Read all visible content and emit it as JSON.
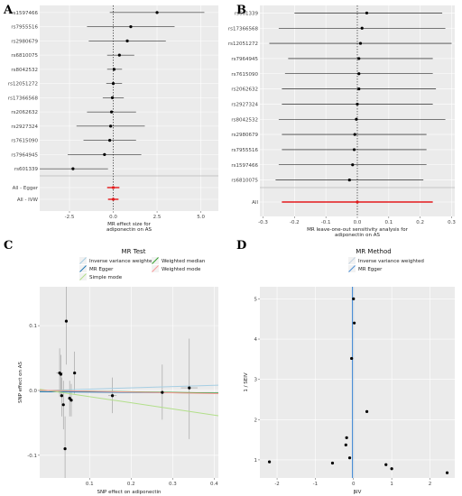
{
  "chart_data": [
    {
      "panel": "A",
      "type": "forest",
      "xlabel": "MR effect size for\nadiponectin on AS",
      "xlim": [
        -4.2,
        6.0
      ],
      "xticks": [
        -2.5,
        0.0,
        2.5,
        5.0
      ],
      "xtick_labels": [
        "-2.5",
        "0.0",
        "2.5",
        "5.0"
      ],
      "snps": [
        {
          "name": "rs1597466",
          "est": 2.5,
          "lo": -0.2,
          "hi": 5.2
        },
        {
          "name": "rs7955516",
          "est": 1.0,
          "lo": -1.5,
          "hi": 3.5
        },
        {
          "name": "rs2980679",
          "est": 0.8,
          "lo": -1.4,
          "hi": 3.0
        },
        {
          "name": "rs6810075",
          "est": 0.35,
          "lo": -0.35,
          "hi": 1.2
        },
        {
          "name": "rs8042532",
          "est": 0.05,
          "lo": -0.35,
          "hi": 0.5
        },
        {
          "name": "rs12051272",
          "est": 0.0,
          "lo": -0.4,
          "hi": 0.5
        },
        {
          "name": "rs17366568",
          "est": -0.05,
          "lo": -0.6,
          "hi": 0.6
        },
        {
          "name": "rs2062632",
          "est": -0.1,
          "lo": -1.5,
          "hi": 1.3
        },
        {
          "name": "rs2927324",
          "est": -0.15,
          "lo": -2.1,
          "hi": 1.8
        },
        {
          "name": "rs7615090",
          "est": -0.2,
          "lo": -1.7,
          "hi": 1.3
        },
        {
          "name": "rs7964945",
          "est": -0.5,
          "lo": -2.6,
          "hi": 1.6
        },
        {
          "name": "rs601339",
          "est": -2.3,
          "lo": -4.3,
          "hi": -0.3
        }
      ],
      "summary": [
        {
          "name": "All - Egger",
          "est": 0.0,
          "lo": -0.35,
          "hi": 0.35
        },
        {
          "name": "All - IVW",
          "est": 0.0,
          "lo": -0.3,
          "hi": 0.3
        }
      ]
    },
    {
      "panel": "B",
      "type": "forest",
      "xlabel": "MR leave-one-out sensitivity analysis for\nadiponectin on AS",
      "xlim": [
        -0.31,
        0.31
      ],
      "xticks": [
        -0.3,
        -0.2,
        -0.1,
        0.0,
        0.1,
        0.2,
        0.3
      ],
      "xtick_labels": [
        "-0.3",
        "-0.2",
        "-0.1",
        "0.0",
        "0.1",
        "0.2",
        "0.3"
      ],
      "snps": [
        {
          "name": "rs601339",
          "est": 0.03,
          "lo": -0.2,
          "hi": 0.27
        },
        {
          "name": "rs17366568",
          "est": 0.015,
          "lo": -0.25,
          "hi": 0.28
        },
        {
          "name": "rs12051272",
          "est": 0.01,
          "lo": -0.28,
          "hi": 0.3
        },
        {
          "name": "rs7964945",
          "est": 0.005,
          "lo": -0.22,
          "hi": 0.24
        },
        {
          "name": "rs7615090",
          "est": 0.005,
          "lo": -0.23,
          "hi": 0.24
        },
        {
          "name": "rs2062632",
          "est": 0.005,
          "lo": -0.24,
          "hi": 0.25
        },
        {
          "name": "rs2927324",
          "est": 0.0,
          "lo": -0.24,
          "hi": 0.24
        },
        {
          "name": "rs8042532",
          "est": -0.003,
          "lo": -0.25,
          "hi": 0.28
        },
        {
          "name": "rs2980679",
          "est": -0.008,
          "lo": -0.24,
          "hi": 0.22
        },
        {
          "name": "rs7955516",
          "est": -0.01,
          "lo": -0.24,
          "hi": 0.22
        },
        {
          "name": "rs1597466",
          "est": -0.015,
          "lo": -0.25,
          "hi": 0.22
        },
        {
          "name": "rs6810075",
          "est": -0.025,
          "lo": -0.26,
          "hi": 0.21
        }
      ],
      "summary": [
        {
          "name": "All",
          "est": 0.0,
          "lo": -0.24,
          "hi": 0.24
        }
      ]
    },
    {
      "panel": "C",
      "type": "scatter",
      "legend_title": "MR Test",
      "legend": [
        {
          "name": "Inverse variance weighted",
          "color": "#a6cee3"
        },
        {
          "name": "MR Egger",
          "color": "#1f78b4"
        },
        {
          "name": "Simple mode",
          "color": "#b2df8a"
        },
        {
          "name": "Weighted median",
          "color": "#33a02c"
        },
        {
          "name": "Weighted mode",
          "color": "#fb9a99"
        }
      ],
      "xlabel": "SNP effect on adiponectin",
      "ylabel": "SNP effect on AS",
      "xlim": [
        -0.02,
        0.41
      ],
      "ylim": [
        -0.135,
        0.16
      ],
      "xticks": [
        0.1,
        0.2,
        0.3,
        0.4
      ],
      "xtick_labels": [
        "0.1",
        "0.2",
        "0.3",
        "0.4"
      ],
      "yticks": [
        -0.1,
        0.0,
        0.1
      ],
      "ytick_labels": [
        "-0.1",
        "0.0",
        "0.1"
      ],
      "points": [
        {
          "x": 0.028,
          "y": 0.027,
          "ylo": -0.01,
          "yhi": 0.065
        },
        {
          "x": 0.031,
          "y": 0.025,
          "ylo": -0.005,
          "yhi": 0.055
        },
        {
          "x": 0.033,
          "y": -0.008,
          "ylo": -0.04,
          "yhi": 0.02
        },
        {
          "x": 0.037,
          "y": -0.022,
          "ylo": -0.06,
          "yhi": 0.015
        },
        {
          "x": 0.041,
          "y": -0.09,
          "ylo": -0.14,
          "yhi": -0.04
        },
        {
          "x": 0.044,
          "y": 0.107,
          "ylo": 0.04,
          "yhi": 0.16
        },
        {
          "x": 0.052,
          "y": -0.012,
          "ylo": -0.04,
          "yhi": 0.015
        },
        {
          "x": 0.056,
          "y": -0.015,
          "ylo": -0.04,
          "yhi": 0.01
        },
        {
          "x": 0.064,
          "y": 0.027,
          "ylo": -0.005,
          "yhi": 0.06
        },
        {
          "x": 0.155,
          "y": -0.008,
          "ylo": -0.035,
          "yhi": 0.02
        },
        {
          "x": 0.275,
          "y": -0.003,
          "ylo": -0.045,
          "yhi": 0.04
        },
        {
          "x": 0.34,
          "y": 0.004,
          "ylo": -0.075,
          "yhi": 0.08
        }
      ],
      "xerr": [
        {
          "y": 0.027,
          "xlo": 0.02,
          "xhi": 0.036
        },
        {
          "y": -0.003,
          "xlo": 0.255,
          "xhi": 0.295
        },
        {
          "y": 0.004,
          "xlo": 0.32,
          "xhi": 0.36
        },
        {
          "y": -0.008,
          "xlo": 0.145,
          "xhi": 0.165
        }
      ],
      "lines": [
        {
          "name": "Inverse variance weighted",
          "color": "#a6cee3",
          "intercept": 0.0,
          "slope": 0.02
        },
        {
          "name": "MR Egger",
          "color": "#1f78b4",
          "intercept": -0.002,
          "slope": -0.005
        },
        {
          "name": "Simple mode",
          "color": "#b2df8a",
          "intercept": 0.0,
          "slope": -0.095
        },
        {
          "name": "Weighted median",
          "color": "#33a02c",
          "intercept": 0.0,
          "slope": -0.01
        },
        {
          "name": "Weighted mode",
          "color": "#fb9a99",
          "intercept": 0.0,
          "slope": -0.012
        }
      ]
    },
    {
      "panel": "D",
      "type": "funnel",
      "legend_title": "MR Method",
      "legend": [
        {
          "name": "Inverse variance weighted",
          "color": "#c6d4e1"
        },
        {
          "name": "MR Egger",
          "color": "#4a8ed6"
        }
      ],
      "xlabel": "βIV",
      "ylabel": "1 / SEIV",
      "xlim": [
        -2.45,
        2.65
      ],
      "ylim": [
        0.55,
        5.3
      ],
      "xticks": [
        -2,
        -1,
        0,
        1,
        2
      ],
      "xtick_labels": [
        "-2",
        "-1",
        "0",
        "1",
        "2"
      ],
      "yticks": [
        1,
        2,
        3,
        4,
        5
      ],
      "ytick_labels": [
        "1",
        "2",
        "3",
        "4",
        "5"
      ],
      "points": [
        {
          "x": -2.2,
          "y": 0.95
        },
        {
          "x": -0.55,
          "y": 0.92
        },
        {
          "x": -0.1,
          "y": 1.05
        },
        {
          "x": -0.2,
          "y": 1.37
        },
        {
          "x": -0.18,
          "y": 1.55
        },
        {
          "x": -0.05,
          "y": 3.52
        },
        {
          "x": 0.02,
          "y": 4.4
        },
        {
          "x": 0.0,
          "y": 5.0
        },
        {
          "x": 0.35,
          "y": 2.2
        },
        {
          "x": 0.85,
          "y": 0.88
        },
        {
          "x": 1.0,
          "y": 0.78
        },
        {
          "x": 2.45,
          "y": 0.68
        }
      ],
      "vlines": [
        {
          "name": "Inverse variance weighted",
          "color": "#c6d4e1",
          "x": 0.0
        },
        {
          "name": "MR Egger",
          "color": "#4a8ed6",
          "x": -0.03
        }
      ]
    }
  ]
}
